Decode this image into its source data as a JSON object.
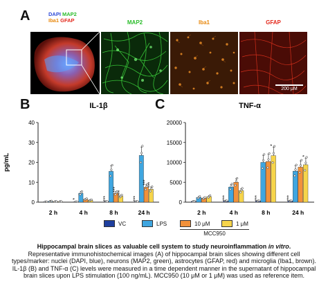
{
  "panels": {
    "a": "A",
    "b": "B",
    "c": "C"
  },
  "legend_overview": {
    "dapi": "DAPI",
    "map2": "MAP2",
    "iba1": "Iba1",
    "gfap": "GFAP",
    "colors": {
      "dapi": "#3030ff",
      "map2": "#3cdc3c",
      "iba1": "#ff9a1f",
      "gfap": "#ff2a1a"
    }
  },
  "micrographs": [
    {
      "label": "MAP2",
      "color": "#2ecc40"
    },
    {
      "label": "Iba1",
      "color": "#f39c12"
    },
    {
      "label": "GFAP",
      "color": "#e74c3c"
    }
  ],
  "scale_bar": "200 μM",
  "legend": {
    "items": [
      {
        "label": "VC",
        "color": "#1f3f9e"
      },
      {
        "label": "LPS",
        "color": "#3fa6e0"
      },
      {
        "label": "10 μM",
        "color": "#f2913a"
      },
      {
        "label": "1 μM",
        "color": "#f6d44a"
      }
    ],
    "group_label": "MCC950"
  },
  "chart_data": [
    {
      "type": "bar",
      "title": "IL-1β",
      "ylabel": "pg/mL",
      "ylim": [
        0,
        40
      ],
      "yticks": [
        0,
        10,
        20,
        30,
        40
      ],
      "categories": [
        "2 h",
        "4 h",
        "8 h",
        "24 h"
      ],
      "series": [
        {
          "name": "VC",
          "values": [
            0.2,
            0.2,
            0.3,
            0.3
          ]
        },
        {
          "name": "LPS",
          "values": [
            0.5,
            4.5,
            15.5,
            23.5
          ]
        },
        {
          "name": "10 μM",
          "values": [
            0.3,
            1.5,
            4.5,
            7.5
          ]
        },
        {
          "name": "1 μM",
          "values": [
            0.3,
            1.0,
            3.0,
            6.5
          ]
        }
      ],
      "annotations": [
        {
          "category": "4 h",
          "series": "VC",
          "text": "*"
        },
        {
          "category": "8 h",
          "series": "VC",
          "text": "***"
        },
        {
          "category": "8 h",
          "series": "10 μM",
          "text": "***"
        },
        {
          "category": "8 h",
          "series": "1 μM",
          "text": "***"
        },
        {
          "category": "24 h",
          "series": "VC",
          "text": "***"
        },
        {
          "category": "24 h",
          "series": "10 μM",
          "text": "***"
        },
        {
          "category": "24 h",
          "series": "1 μM",
          "text": "***"
        }
      ]
    },
    {
      "type": "bar",
      "title": "TNF-α",
      "ylabel": "",
      "ylim": [
        0,
        20000
      ],
      "yticks": [
        0,
        5000,
        10000,
        15000,
        20000
      ],
      "categories": [
        "2 h",
        "4 h",
        "8 h",
        "24 h"
      ],
      "series": [
        {
          "name": "VC",
          "values": [
            200,
            300,
            300,
            300
          ]
        },
        {
          "name": "LPS",
          "values": [
            1200,
            3800,
            10000,
            7800
          ]
        },
        {
          "name": "10 μM",
          "values": [
            1000,
            5000,
            10200,
            8800
          ]
        },
        {
          "name": "1 μM",
          "values": [
            1400,
            2900,
            11700,
            9400
          ]
        }
      ],
      "annotations": [
        {
          "category": "4 h",
          "series": "VC",
          "text": "***"
        },
        {
          "category": "8 h",
          "series": "VC",
          "text": "***"
        },
        {
          "category": "8 h",
          "series": "1 μM",
          "text": "*"
        },
        {
          "category": "24 h",
          "series": "VC",
          "text": "***"
        },
        {
          "category": "24 h",
          "series": "1 μM",
          "text": "*"
        }
      ]
    }
  ],
  "caption": {
    "title": "Hippocampal brain slices as valuable cell system to study neuroinflammation ",
    "title_italic": "in vitro",
    "title_end": ".",
    "body": "Representative immunohistochemical images (A) of hippocampal brain slices showing different cell types/marker: nuclei (DAPI, blue), neurons (MAP2, green), astrocytes (GFAP, red) and microglia (Iba1, brown). IL-1β (B) and TNF-α (C) levels were measured in a time dependent manner in the supernatant of hippocampal brain slices upon LPS stimulation (100 ng/mL). MCC950 (10 μM or 1 μM) was used as reference item."
  }
}
